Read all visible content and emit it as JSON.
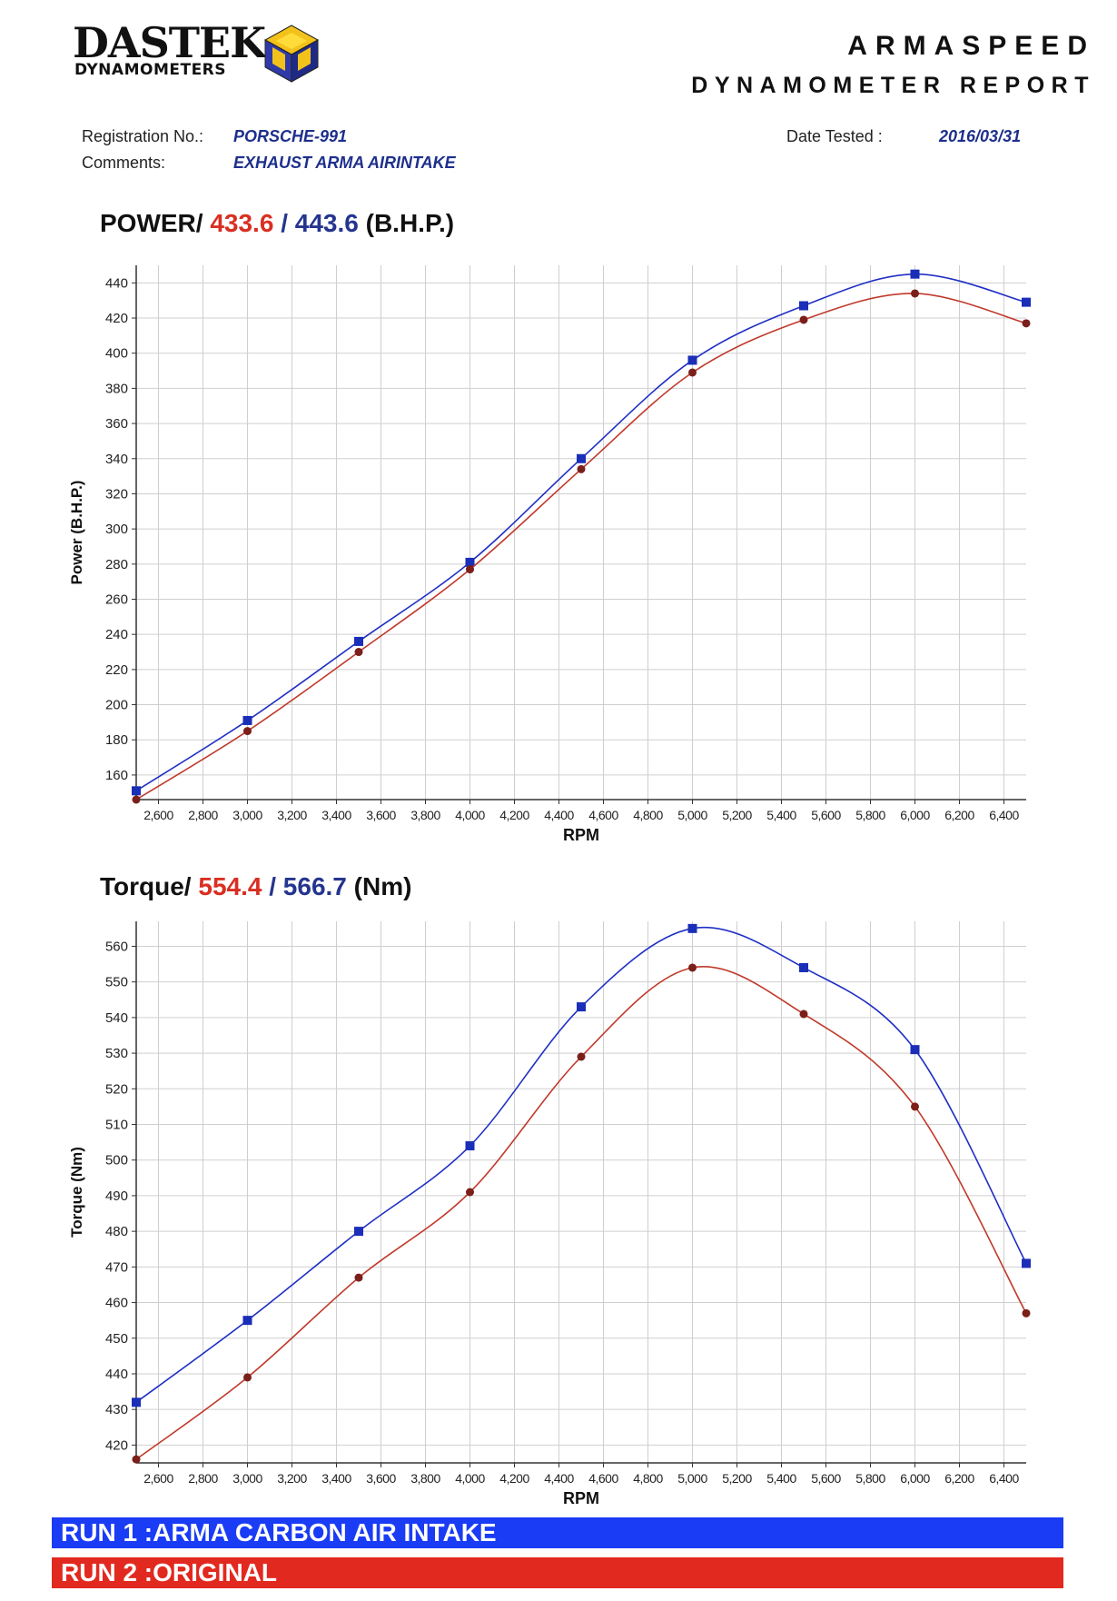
{
  "header": {
    "logo_word": "DASTEK",
    "logo_sub": "DYNAMOMETERS",
    "company": "ARMASPEED",
    "report_type": "DYNAMOMETER REPORT"
  },
  "info": {
    "registration_label": "Registration No.:",
    "registration_value": "PORSCHE-991",
    "comments_label": "Comments:",
    "comments_value": "EXHAUST ARMA AIRINTAKE",
    "date_label": "Date Tested :",
    "date_value": "2016/03/31"
  },
  "power_title": {
    "prefix": "POWER/ ",
    "red": "433.6",
    "sep": " / ",
    "blue": "443.6",
    "suffix": " (B.H.P.)"
  },
  "torque_title": {
    "prefix": "Torque/ ",
    "red": "554.4",
    "sep": " / ",
    "blue": "566.7",
    "suffix": " (Nm)"
  },
  "legend": {
    "run1": "RUN 1 :ARMA CARBON AIR INTAKE",
    "run2": "RUN 2 :ORIGINAL"
  },
  "colors": {
    "run1": "#1f2fc4",
    "run2": "#c0392b",
    "grid": "#cfcfcf"
  },
  "chart_data": [
    {
      "type": "line",
      "title": "POWER/ 433.6 / 443.6 (B.H.P.)",
      "xlabel": "RPM",
      "ylabel": "Power (B.H.P.)",
      "xlim": [
        2500,
        6500
      ],
      "ylim": [
        146,
        450
      ],
      "xticks": [
        2600,
        2800,
        3000,
        3200,
        3400,
        3600,
        3800,
        4000,
        4200,
        4400,
        4600,
        4800,
        5000,
        5200,
        5400,
        5600,
        5800,
        6000,
        6200,
        6400
      ],
      "xtick_labels": [
        "2,600",
        "2,800",
        "3,000",
        "3,200",
        "3,400",
        "3,600",
        "3,800",
        "4,000",
        "4,200",
        "4,400",
        "4,600",
        "4,800",
        "5,000",
        "5,200",
        "5,400",
        "5,600",
        "5,800",
        "6,000",
        "6,200",
        "6,400"
      ],
      "yticks": [
        160,
        180,
        200,
        220,
        240,
        260,
        280,
        300,
        320,
        340,
        360,
        380,
        400,
        420,
        440
      ],
      "grid": true,
      "series": [
        {
          "legend": "RUN 1 :ARMA CARBON AIR INTAKE",
          "marker": "square",
          "x": [
            2500,
            3000,
            3500,
            4000,
            4500,
            5000,
            5500,
            6000,
            6500
          ],
          "y": [
            151,
            191,
            236,
            281,
            340,
            396,
            427,
            445,
            429
          ]
        },
        {
          "legend": "RUN 2 :ORIGINAL",
          "marker": "circle",
          "x": [
            2500,
            3000,
            3500,
            4000,
            4500,
            5000,
            5500,
            6000,
            6500
          ],
          "y": [
            146,
            185,
            230,
            277,
            334,
            389,
            419,
            434,
            417
          ]
        }
      ]
    },
    {
      "type": "line",
      "title": "Torque/ 554.4 / 566.7 (Nm)",
      "xlabel": "RPM",
      "ylabel": "Torque (Nm)",
      "xlim": [
        2500,
        6500
      ],
      "ylim": [
        415,
        567
      ],
      "xticks": [
        2600,
        2800,
        3000,
        3200,
        3400,
        3600,
        3800,
        4000,
        4200,
        4400,
        4600,
        4800,
        5000,
        5200,
        5400,
        5600,
        5800,
        6000,
        6200,
        6400
      ],
      "xtick_labels": [
        "2,600",
        "2,800",
        "3,000",
        "3,200",
        "3,400",
        "3,600",
        "3,800",
        "4,000",
        "4,200",
        "4,400",
        "4,600",
        "4,800",
        "5,000",
        "5,200",
        "5,400",
        "5,600",
        "5,800",
        "6,000",
        "6,200",
        "6,400"
      ],
      "yticks": [
        420,
        430,
        440,
        450,
        460,
        470,
        480,
        490,
        500,
        510,
        520,
        530,
        540,
        550,
        560
      ],
      "grid": true,
      "series": [
        {
          "legend": "RUN 1 :ARMA CARBON AIR INTAKE",
          "marker": "square",
          "x": [
            2500,
            3000,
            3500,
            4000,
            4500,
            5000,
            5500,
            6000,
            6500
          ],
          "y": [
            432,
            455,
            480,
            504,
            543,
            565,
            554,
            531,
            471
          ]
        },
        {
          "legend": "RUN 2 :ORIGINAL",
          "marker": "circle",
          "x": [
            2500,
            3000,
            3500,
            4000,
            4500,
            5000,
            5500,
            6000,
            6500
          ],
          "y": [
            416,
            439,
            467,
            491,
            529,
            554,
            541,
            515,
            457
          ]
        }
      ]
    }
  ]
}
